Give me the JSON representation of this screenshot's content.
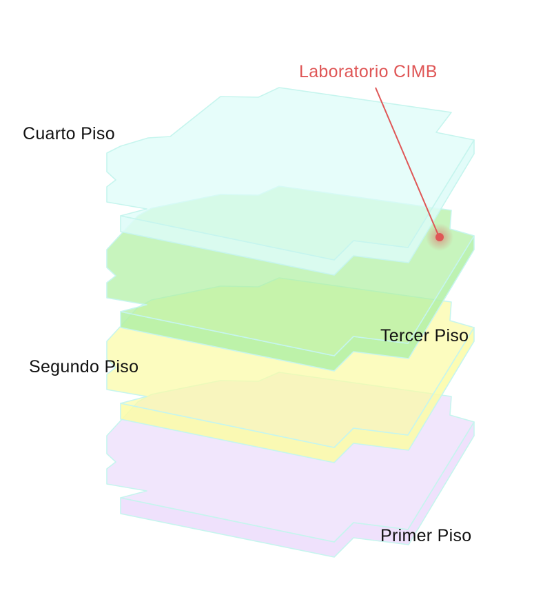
{
  "floors": [
    {
      "id": "primer",
      "label": "Primer Piso",
      "color": "#ecdcfb"
    },
    {
      "id": "segundo",
      "label": "Segundo Piso",
      "color": "#fbfba6"
    },
    {
      "id": "tercer",
      "label": "Tercer Piso",
      "color": "#b2f0a4"
    },
    {
      "id": "cuarto",
      "label": "Cuarto Piso",
      "color": "#ddfcf8"
    }
  ],
  "outline_color": "#c6f5ee",
  "marker": {
    "label": "Laboratorio CIMB",
    "color": "#df5656"
  }
}
